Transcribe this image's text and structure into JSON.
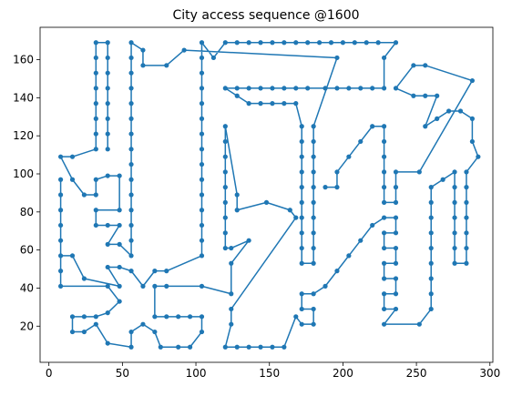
{
  "chart_data": {
    "type": "line",
    "title": "City access sequence @1600",
    "color": "#1f77b4",
    "x": [
      40,
      40,
      40,
      40,
      40,
      40,
      40,
      40,
      32,
      32,
      32,
      32,
      32,
      32,
      32,
      32,
      16,
      8,
      16,
      24,
      32,
      32,
      40,
      48,
      48,
      32,
      32,
      40,
      48,
      40,
      48,
      56,
      56,
      56,
      56,
      56,
      56,
      56,
      56,
      56,
      56,
      56,
      56,
      56,
      56,
      56,
      64,
      64,
      80,
      92,
      196,
      180,
      180,
      180,
      180,
      180,
      180,
      180,
      180,
      180,
      180,
      172,
      172,
      172,
      172,
      172,
      172,
      172,
      172,
      172,
      172,
      168,
      160,
      152,
      144,
      136,
      128,
      120,
      128,
      136,
      144,
      152,
      160,
      168,
      176,
      188,
      196,
      204,
      212,
      220,
      228,
      228,
      236,
      224,
      216,
      208,
      200,
      192,
      184,
      176,
      168,
      160,
      152,
      144,
      136,
      128,
      120,
      112,
      104,
      104,
      104,
      104,
      104,
      104,
      104,
      104,
      104,
      104,
      104,
      104,
      104,
      104,
      104,
      80,
      72,
      64,
      56,
      48,
      40,
      48,
      24,
      16,
      8,
      8,
      8,
      8,
      8,
      8,
      8,
      8,
      40,
      48,
      40,
      32,
      24,
      16,
      16,
      24,
      32,
      40,
      56,
      56,
      64,
      72,
      76,
      88,
      96,
      104,
      104,
      96,
      88,
      80,
      72,
      72,
      80,
      104,
      124,
      124,
      136,
      124,
      120,
      120,
      120,
      120,
      120,
      120,
      120,
      120,
      120,
      128,
      128,
      148,
      164,
      168,
      124,
      124,
      120,
      128,
      136,
      144,
      152,
      160,
      168,
      172,
      180,
      180,
      172,
      172,
      180,
      188,
      196,
      204,
      212,
      220,
      228,
      236,
      236,
      228,
      228,
      236,
      236,
      228,
      228,
      236,
      236,
      228,
      228,
      236,
      228,
      252,
      260,
      260,
      260,
      260,
      260,
      260,
      260,
      260,
      260,
      268,
      276,
      276,
      276,
      276,
      276,
      276,
      276,
      284,
      284,
      284,
      284,
      284,
      284,
      284,
      292,
      288,
      288,
      280,
      272,
      264,
      256,
      264,
      256,
      248,
      236,
      248,
      256,
      288,
      252,
      236,
      236,
      236,
      228,
      228,
      228,
      228,
      228,
      228,
      220,
      212,
      204,
      196,
      196,
      188
    ],
    "values": [
      113,
      121,
      129,
      137,
      145,
      153,
      161,
      169,
      169,
      161,
      153,
      145,
      137,
      129,
      121,
      113,
      109,
      109,
      97,
      89,
      89,
      97,
      99,
      99,
      81,
      81,
      73,
      73,
      73,
      63,
      63,
      57,
      65,
      73,
      81,
      89,
      97,
      105,
      113,
      121,
      129,
      137,
      145,
      153,
      161,
      169,
      165,
      157,
      157,
      165,
      161,
      125,
      117,
      109,
      101,
      93,
      85,
      77,
      69,
      61,
      53,
      53,
      61,
      69,
      77,
      85,
      93,
      101,
      109,
      117,
      125,
      137,
      137,
      137,
      137,
      137,
      141,
      145,
      145,
      145,
      145,
      145,
      145,
      145,
      145,
      145,
      145,
      145,
      145,
      145,
      145,
      161,
      169,
      169,
      169,
      169,
      169,
      169,
      169,
      169,
      169,
      169,
      169,
      169,
      169,
      169,
      169,
      161,
      169,
      161,
      153,
      145,
      137,
      129,
      121,
      113,
      105,
      97,
      89,
      81,
      73,
      65,
      57,
      49,
      49,
      41,
      49,
      51,
      51,
      41,
      45,
      57,
      57,
      65,
      73,
      81,
      89,
      97,
      49,
      41,
      41,
      33,
      27,
      25,
      25,
      25,
      17,
      17,
      21,
      11,
      9,
      17,
      21,
      17,
      9,
      9,
      9,
      17,
      25,
      25,
      25,
      25,
      25,
      41,
      41,
      41,
      37,
      53,
      65,
      61,
      61,
      69,
      77,
      85,
      93,
      101,
      109,
      117,
      125,
      89,
      81,
      85,
      81,
      77,
      29,
      21,
      9,
      9,
      9,
      9,
      9,
      9,
      25,
      21,
      21,
      29,
      29,
      37,
      37,
      41,
      49,
      57,
      65,
      73,
      77,
      77,
      69,
      69,
      61,
      61,
      53,
      53,
      45,
      45,
      37,
      37,
      29,
      29,
      21,
      21,
      29,
      37,
      45,
      53,
      61,
      69,
      77,
      85,
      93,
      97,
      101,
      93,
      85,
      77,
      69,
      61,
      53,
      53,
      61,
      69,
      77,
      85,
      93,
      101,
      109,
      117,
      129,
      133,
      133,
      129,
      125,
      141,
      141,
      141,
      145,
      157,
      157,
      149,
      101,
      101,
      93,
      85,
      85,
      93,
      101,
      109,
      117,
      125,
      125,
      117,
      109,
      101,
      93,
      93
    ],
    "xlim": [
      -6,
      302
    ],
    "ylim": [
      1,
      177
    ],
    "xticks": [
      0,
      50,
      100,
      150,
      200,
      250,
      300
    ],
    "yticks": [
      20,
      40,
      60,
      80,
      100,
      120,
      140,
      160
    ],
    "grid": false
  }
}
